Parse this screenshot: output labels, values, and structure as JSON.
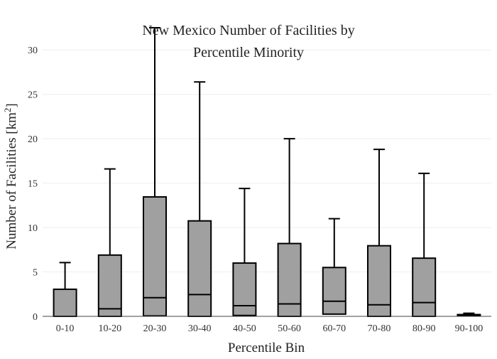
{
  "chart_data": {
    "type": "box",
    "title_lines": [
      "New Mexico Number of Facilities by",
      "Percentile Minority"
    ],
    "xlabel": "Percentile Bin",
    "ylabel_main": "Number of Facilities  [km",
    "ylabel_sup": "2",
    "ylabel_end": "]",
    "ylim": [
      0,
      32.5
    ],
    "yticks": [
      0,
      5,
      10,
      15,
      20,
      25,
      30
    ],
    "grid": true,
    "categories": [
      "0-10",
      "10-20",
      "20-30",
      "30-40",
      "40-50",
      "50-60",
      "60-70",
      "70-80",
      "80-90",
      "90-100"
    ],
    "boxes": [
      {
        "min": 0,
        "q1": 0,
        "median": 0,
        "q3": 3.05,
        "max": 6.05
      },
      {
        "min": 0,
        "q1": 0,
        "median": 0.85,
        "q3": 6.9,
        "max": 16.6
      },
      {
        "min": 0,
        "q1": 0.05,
        "median": 2.1,
        "q3": 13.45,
        "max": 32.5
      },
      {
        "min": 0,
        "q1": 0,
        "median": 2.45,
        "q3": 10.75,
        "max": 26.4
      },
      {
        "min": 0,
        "q1": 0.1,
        "median": 1.2,
        "q3": 6.0,
        "max": 14.4
      },
      {
        "min": 0,
        "q1": 0,
        "median": 1.4,
        "q3": 8.2,
        "max": 20.0
      },
      {
        "min": 0.1,
        "q1": 0.25,
        "median": 1.7,
        "q3": 5.5,
        "max": 11.0
      },
      {
        "min": 0,
        "q1": 0,
        "median": 1.3,
        "q3": 7.95,
        "max": 18.8
      },
      {
        "min": 0,
        "q1": 0,
        "median": 1.55,
        "q3": 6.55,
        "max": 16.1
      },
      {
        "min": 0,
        "q1": 0.05,
        "median": 0.1,
        "q3": 0.2,
        "max": 0.35
      }
    ],
    "colors": {
      "box_fill": "#a0a0a0",
      "box_stroke": "#000000",
      "grid": "#eeeeee"
    }
  }
}
